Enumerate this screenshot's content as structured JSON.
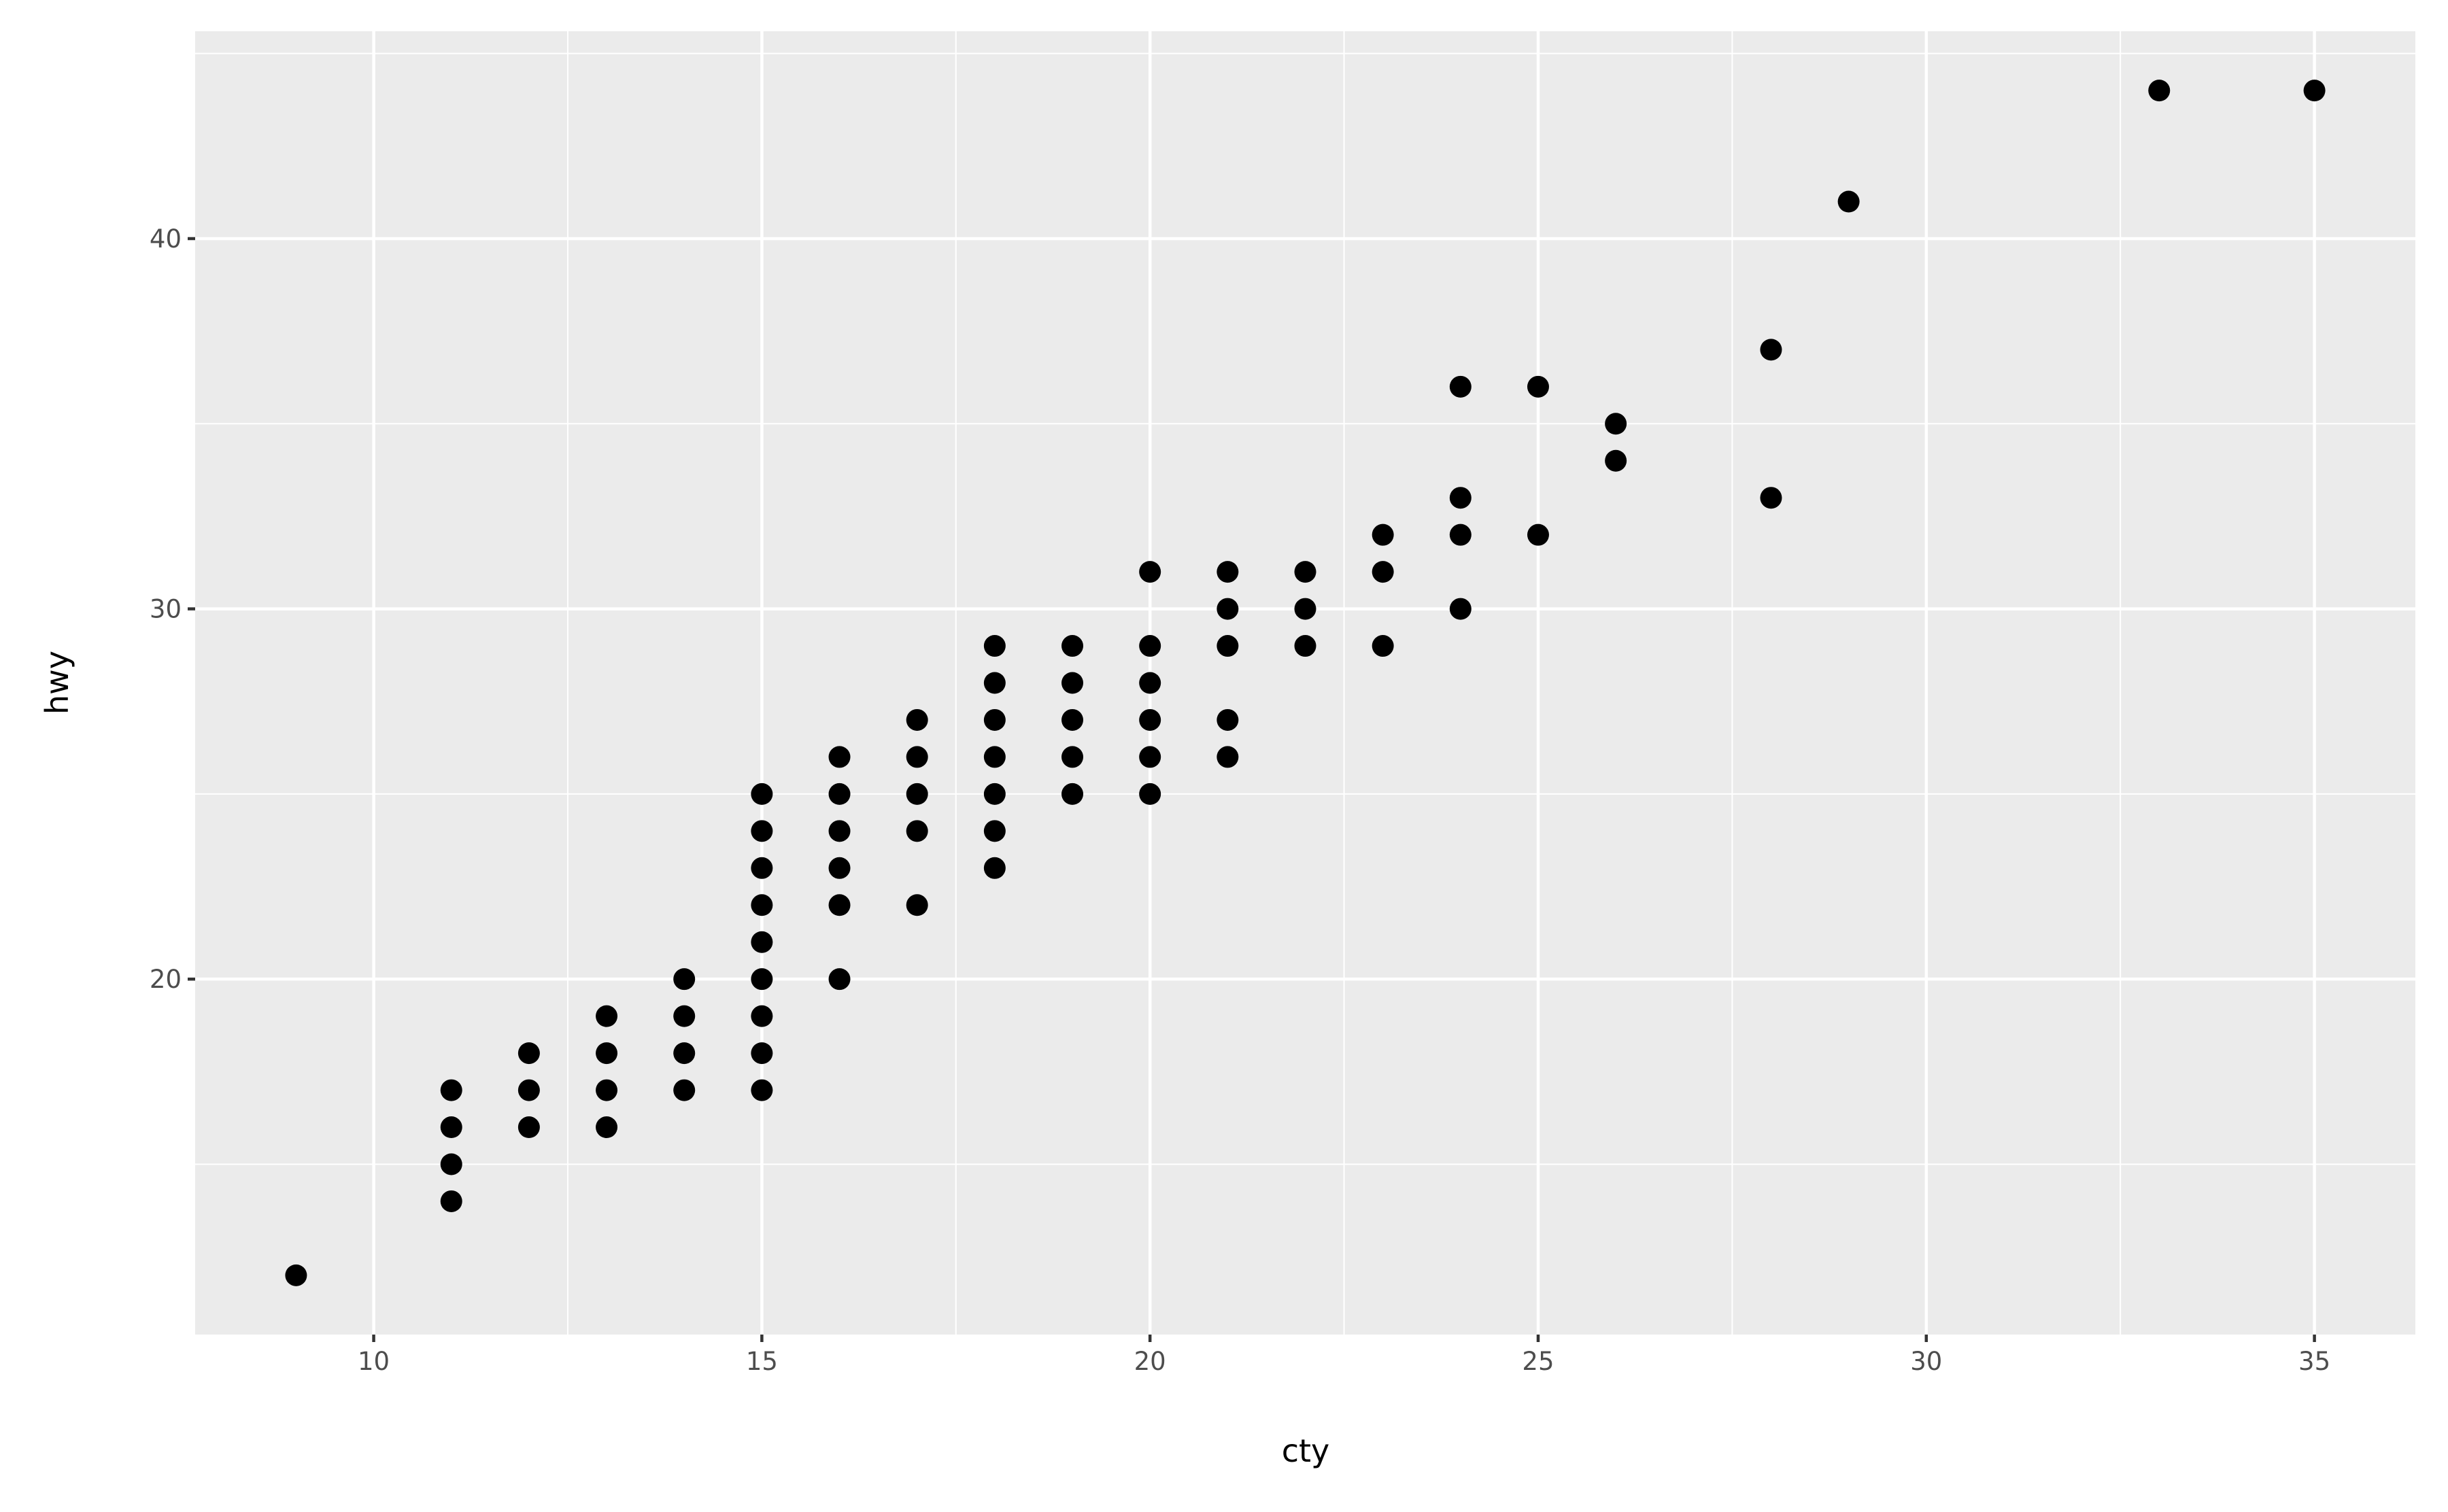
{
  "chart_data": {
    "type": "scatter",
    "x_label": "cty",
    "y_label": "hwy",
    "x": [
      9,
      11,
      11,
      11,
      11,
      12,
      12,
      12,
      13,
      13,
      13,
      13,
      14,
      14,
      14,
      14,
      15,
      15,
      15,
      15,
      15,
      15,
      15,
      15,
      15,
      16,
      16,
      16,
      16,
      16,
      16,
      17,
      17,
      17,
      17,
      17,
      18,
      18,
      18,
      18,
      18,
      18,
      18,
      19,
      19,
      19,
      19,
      19,
      20,
      20,
      20,
      20,
      20,
      20,
      21,
      21,
      21,
      21,
      21,
      22,
      22,
      22,
      23,
      23,
      23,
      24,
      24,
      24,
      24,
      25,
      25,
      26,
      26,
      28,
      28,
      29,
      33,
      35
    ],
    "y": [
      12,
      14,
      15,
      16,
      17,
      16,
      17,
      18,
      16,
      17,
      18,
      19,
      17,
      18,
      19,
      20,
      17,
      18,
      19,
      20,
      21,
      22,
      23,
      24,
      25,
      20,
      22,
      23,
      24,
      25,
      26,
      22,
      24,
      25,
      26,
      27,
      23,
      24,
      25,
      26,
      27,
      28,
      29,
      25,
      26,
      27,
      28,
      29,
      25,
      26,
      27,
      28,
      29,
      31,
      26,
      27,
      29,
      30,
      31,
      29,
      30,
      31,
      29,
      31,
      32,
      30,
      32,
      33,
      36,
      32,
      36,
      34,
      35,
      33,
      37,
      41,
      44,
      44
    ],
    "color": "#000000",
    "xlim": [
      7.7,
      36.3
    ],
    "ylim": [
      10.4,
      45.6
    ],
    "xticks": [
      10,
      15,
      20,
      25,
      30,
      35
    ],
    "yticks": [
      20,
      30,
      40
    ],
    "x_minor_grid": [
      12.5,
      17.5,
      22.5,
      27.5,
      32.5
    ],
    "y_minor_grid": [
      15,
      25,
      35,
      45
    ],
    "grid": true,
    "panel_color": "#EBEBEB"
  }
}
